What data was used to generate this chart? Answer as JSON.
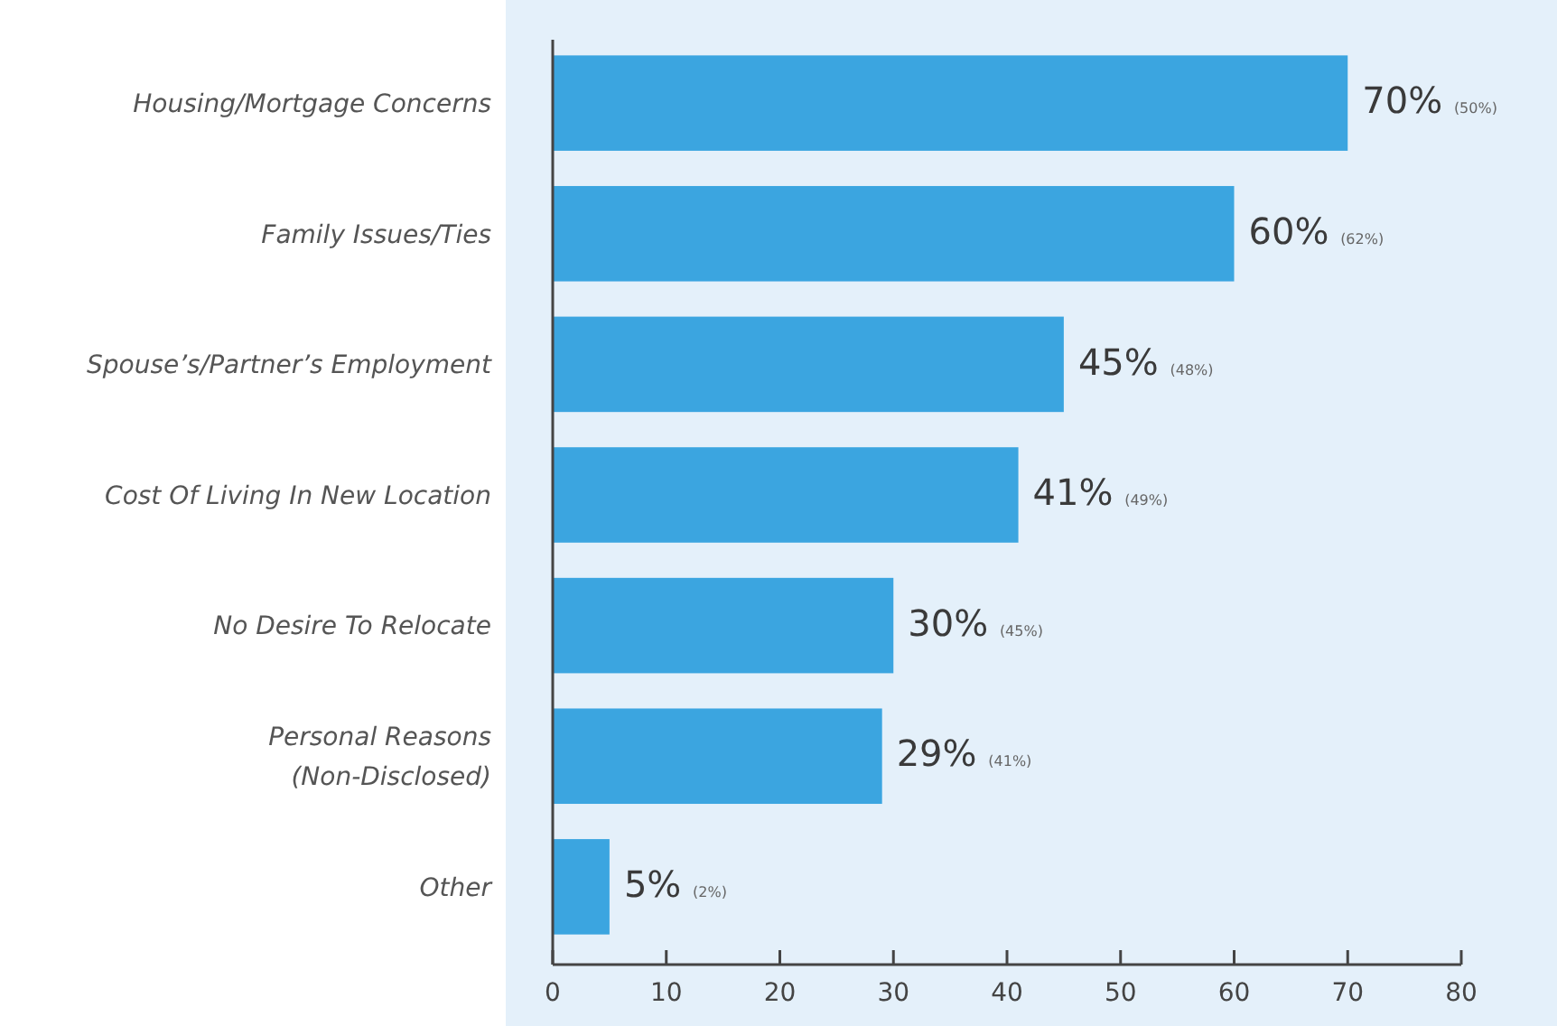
{
  "chart_data": {
    "type": "bar",
    "orientation": "horizontal",
    "categories": [
      "Housing/Mortgage Concerns",
      "Family Issues/Ties",
      "Spouse’s/Partner’s Employment",
      "Cost Of Living In New Location",
      "No Desire To Relocate",
      "Personal Reasons\n(Non-Disclosed)",
      "Other"
    ],
    "values": [
      70,
      60,
      45,
      41,
      30,
      29,
      5
    ],
    "value_labels": [
      "70% (50%)",
      "60% (62%)",
      "45% (48%)",
      "41% (49%)",
      "30% (45%)",
      "29% (41%)",
      "5% (2%)"
    ],
    "color": "#3ba5e0",
    "xlim": [
      0,
      80
    ],
    "xticks": [
      0,
      10,
      20,
      30,
      40,
      50,
      60,
      70,
      80
    ],
    "grid": false
  }
}
